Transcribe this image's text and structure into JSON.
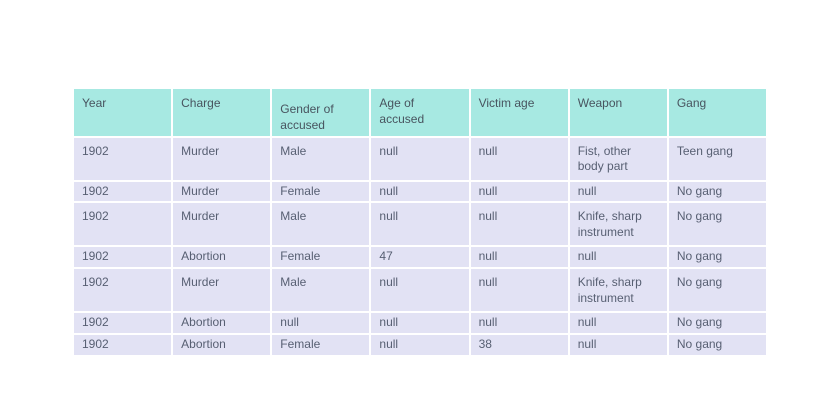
{
  "colors": {
    "header_bg": "#a7e9e2",
    "row_bg": "#e2e2f4",
    "header_text": "#48545f",
    "body_text": "#575f72",
    "page_bg": "#ffffff"
  },
  "chart_data": {
    "type": "table",
    "columns": [
      "Year",
      "Charge",
      "Gender of accused",
      "Age of accused",
      "Victim age",
      "Weapon",
      "Gang"
    ],
    "rows": [
      [
        "1902",
        "Murder",
        "Male",
        "null",
        "null",
        "Fist, other body part",
        "Teen gang"
      ],
      [
        "1902",
        "Murder",
        "Female",
        "null",
        "null",
        "null",
        "No gang"
      ],
      [
        "1902",
        "Murder",
        "Male",
        "null",
        "null",
        "Knife, sharp instrument",
        "No gang"
      ],
      [
        "1902",
        "Abortion",
        "Female",
        "47",
        "null",
        "null",
        "No gang"
      ],
      [
        "1902",
        "Murder",
        "Male",
        "null",
        "null",
        "Knife, sharp instrument",
        "No gang"
      ],
      [
        "1902",
        "Abortion",
        "null",
        "null",
        "null",
        "null",
        "No gang"
      ],
      [
        "1902",
        "Abortion",
        "Female",
        "null",
        "38",
        "null",
        "No gang"
      ]
    ],
    "title": "",
    "legend": "none",
    "grid": "white 2px cell separators"
  }
}
